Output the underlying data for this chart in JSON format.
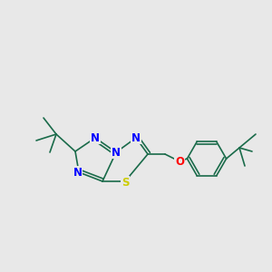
{
  "background_color": "#e8e8e8",
  "atom_colors": {
    "N": "#0000FF",
    "S": "#CCCC00",
    "O": "#FF0000",
    "C": "#1a6b4a",
    "bond": "#1a6b4a"
  },
  "lw": 1.2,
  "fs": 8.5
}
